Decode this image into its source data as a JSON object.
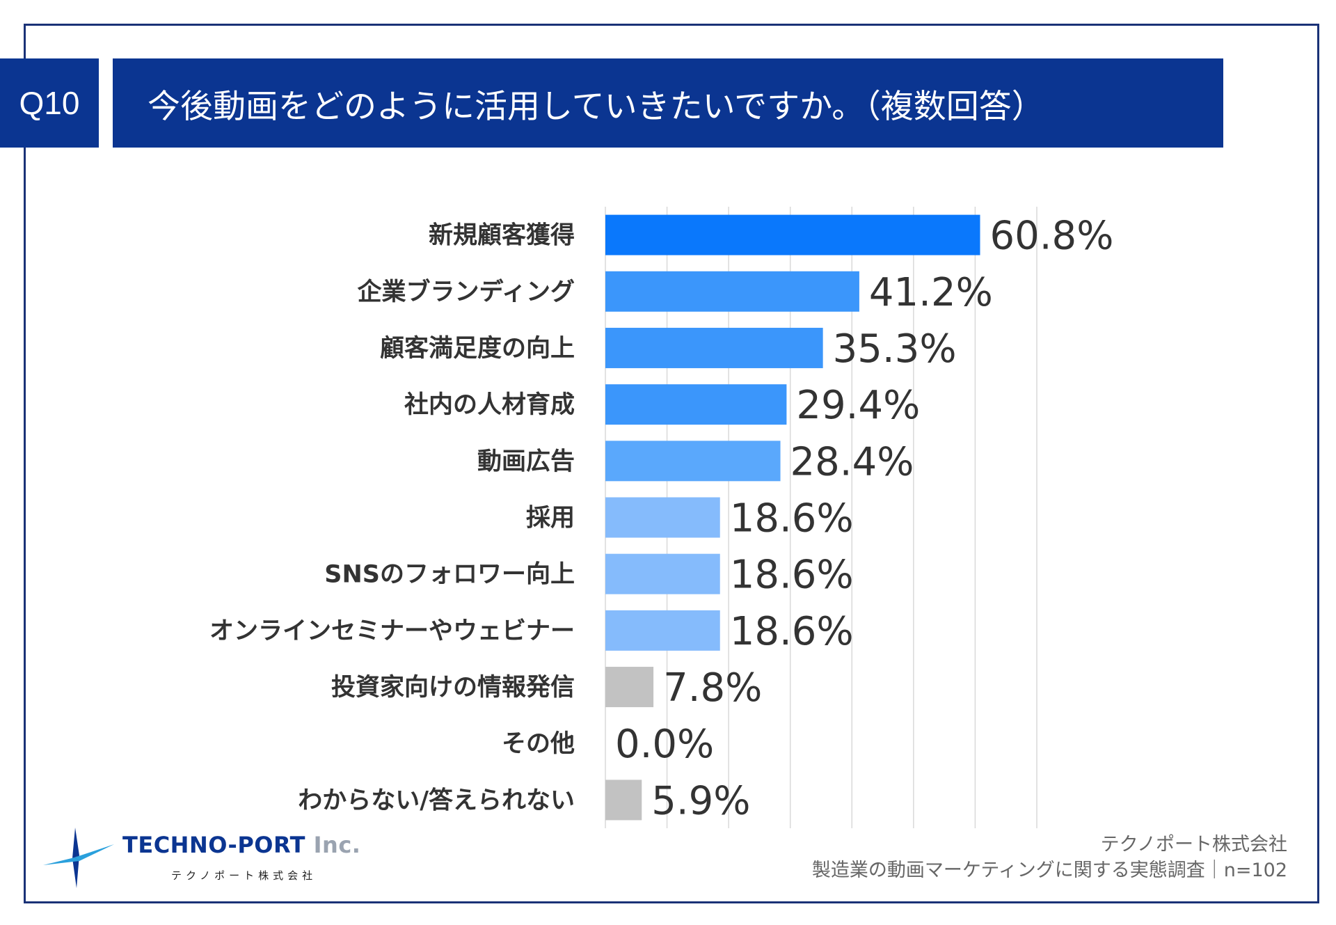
{
  "header": {
    "question_no": "Q10",
    "question": "今後動画をどのように活用していきたいですか。（複数回答）"
  },
  "colors": {
    "header_bg": "#0b3591",
    "frame": "#1a3277",
    "bar_top": "#0a78fc",
    "bar_high": "#3b96fb",
    "bar_mid": "#5aa8fc",
    "bar_low": "#85bbfc",
    "bar_gray": "#c2c2c2",
    "grid": "#d9d9d9"
  },
  "chart_data": {
    "type": "bar",
    "orientation": "horizontal",
    "title": "今後動画をどのように活用していきたいですか。（複数回答）",
    "categories": [
      "新規顧客獲得",
      "企業ブランディング",
      "顧客満足度の向上",
      "社内の人材育成",
      "動画広告",
      "採用",
      "SNSのフォロワー向上",
      "オンラインセミナーやウェビナー",
      "投資家向けの情報発信",
      "その他",
      "わからない/答えられない"
    ],
    "values": [
      60.8,
      41.2,
      35.3,
      29.4,
      28.4,
      18.6,
      18.6,
      18.6,
      7.8,
      0.0,
      5.9
    ],
    "value_labels": [
      "60.8%",
      "41.2%",
      "35.3%",
      "29.4%",
      "28.4%",
      "18.6%",
      "18.6%",
      "18.6%",
      "7.8%",
      "0.0%",
      "5.9%"
    ],
    "bar_colors": [
      "#0a78fc",
      "#3b96fb",
      "#3b96fb",
      "#3b96fb",
      "#5aa8fc",
      "#85bbfc",
      "#85bbfc",
      "#85bbfc",
      "#c2c2c2",
      "#c2c2c2",
      "#c2c2c2"
    ],
    "xlim": [
      0,
      70
    ],
    "grid_step": 10,
    "unit": "%"
  },
  "logo": {
    "name_main": "TECHNO-PORT",
    "name_suffix": " Inc.",
    "name_kana": "テクノポート株式会社"
  },
  "source": {
    "company": "テクノポート株式会社",
    "survey": "製造業の動画マーケティングに関する実態調査｜n=102"
  }
}
